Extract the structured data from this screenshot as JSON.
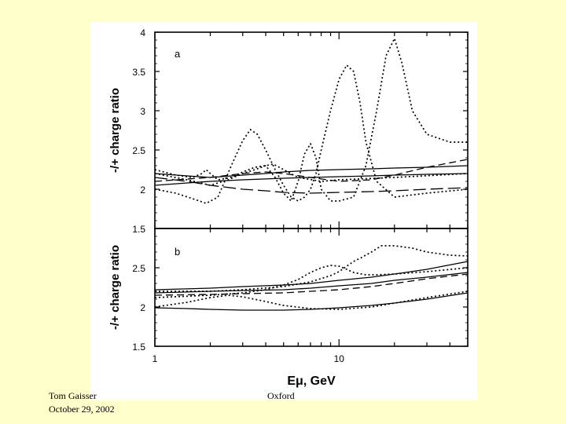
{
  "footer": {
    "author": "Tom Gaisser",
    "date": "October 29, 2002",
    "venue": "Oxford"
  },
  "chart_data": [
    {
      "type": "line",
      "panel_label": "a",
      "ylabel": "-/+ charge ratio",
      "xlabel": "",
      "xscale": "log",
      "xlim": [
        1,
        50
      ],
      "ylim": [
        1.5,
        4
      ],
      "yticks": [
        1.5,
        2,
        2.5,
        3,
        3.5,
        4
      ],
      "ytick_labels": [
        "1.5",
        "2",
        "2.5",
        "3",
        "3.5",
        "4"
      ],
      "series": [
        {
          "style": "dotted",
          "x": [
            1,
            1.3,
            1.6,
            1.9,
            2.2,
            2.6,
            3,
            3.3,
            3.6,
            4,
            4.5,
            5,
            5.5,
            6,
            6.5,
            7,
            7.5,
            8,
            9,
            10,
            11,
            12,
            13,
            14,
            16,
            20,
            30,
            50
          ],
          "y": [
            2.0,
            1.95,
            1.88,
            1.82,
            1.9,
            2.3,
            2.62,
            2.76,
            2.7,
            2.5,
            2.25,
            2.05,
            1.9,
            1.85,
            1.9,
            2.0,
            2.2,
            2.5,
            3.0,
            3.4,
            3.58,
            3.5,
            3.1,
            2.6,
            2.1,
            1.9,
            1.95,
            2.0
          ]
        },
        {
          "style": "dotted",
          "x": [
            1,
            1.5,
            2,
            2.5,
            3,
            3.5,
            4,
            4.5,
            5,
            5.5,
            6,
            6.5,
            7,
            7.5,
            8,
            9,
            10,
            12,
            14,
            16,
            18,
            20,
            22,
            25,
            30,
            40,
            50
          ],
          "y": [
            2.2,
            2.12,
            2.05,
            2.12,
            2.2,
            2.25,
            2.3,
            2.15,
            1.95,
            1.85,
            2.1,
            2.45,
            2.58,
            2.4,
            2.0,
            1.85,
            1.85,
            1.9,
            2.3,
            3.0,
            3.7,
            3.92,
            3.6,
            3.0,
            2.7,
            2.6,
            2.6
          ]
        },
        {
          "style": "dotted",
          "x": [
            1,
            1.3,
            1.6,
            1.8,
            1.9,
            2.0,
            2.2,
            2.6,
            3,
            3.5,
            4,
            4.4,
            5,
            6,
            8,
            10,
            20,
            50
          ],
          "y": [
            2.25,
            2.18,
            2.15,
            2.2,
            2.25,
            2.2,
            2.12,
            2.15,
            2.22,
            2.28,
            2.3,
            2.32,
            2.25,
            2.15,
            2.1,
            2.12,
            2.15,
            2.2
          ]
        },
        {
          "style": "long-dash",
          "x": [
            1,
            1.5,
            2,
            3,
            4,
            5,
            7,
            10,
            15,
            20,
            30,
            50
          ],
          "y": [
            2.15,
            2.1,
            2.05,
            2.0,
            1.98,
            1.96,
            1.95,
            1.96,
            1.97,
            1.98,
            2.0,
            2.02
          ]
        },
        {
          "style": "dash",
          "x": [
            1,
            1.5,
            2,
            3,
            4,
            5,
            7,
            10,
            15,
            20,
            30,
            50
          ],
          "y": [
            2.1,
            2.13,
            2.15,
            2.2,
            2.22,
            2.2,
            2.15,
            2.1,
            2.12,
            2.18,
            2.28,
            2.38
          ]
        },
        {
          "style": "solid",
          "x": [
            1,
            1.5,
            2,
            3,
            4,
            5,
            7,
            10,
            15,
            20,
            30,
            50
          ],
          "y": [
            2.2,
            2.17,
            2.15,
            2.18,
            2.2,
            2.22,
            2.24,
            2.25,
            2.26,
            2.27,
            2.28,
            2.3
          ]
        },
        {
          "style": "solid",
          "x": [
            1,
            1.5,
            2,
            3,
            5,
            7,
            10,
            15,
            20,
            30,
            50
          ],
          "y": [
            2.05,
            2.08,
            2.1,
            2.12,
            2.14,
            2.15,
            2.16,
            2.17,
            2.18,
            2.19,
            2.2
          ]
        }
      ]
    },
    {
      "type": "line",
      "panel_label": "b",
      "ylabel": "-/+ charge ratio",
      "xlabel": "Eμ, GeV",
      "xscale": "log",
      "xlim": [
        1,
        50
      ],
      "ylim": [
        1.5,
        3
      ],
      "xticks": [
        1,
        10
      ],
      "xtick_labels": [
        "1",
        "10"
      ],
      "yticks": [
        1.5,
        2,
        2.5
      ],
      "ytick_labels": [
        "1.5",
        "2",
        "2.5"
      ],
      "series": [
        {
          "style": "dotted",
          "x": [
            1,
            2,
            3,
            4,
            5,
            6,
            7,
            8,
            9,
            10,
            11,
            12,
            14,
            16,
            20,
            30,
            50
          ],
          "y": [
            2.12,
            2.15,
            2.18,
            2.22,
            2.28,
            2.35,
            2.44,
            2.5,
            2.53,
            2.52,
            2.48,
            2.44,
            2.41,
            2.41,
            2.42,
            2.45,
            2.5
          ]
        },
        {
          "style": "dotted",
          "x": [
            1,
            2,
            3,
            5,
            7,
            9,
            10,
            11,
            12,
            13,
            15,
            17,
            20,
            25,
            30,
            40,
            50
          ],
          "y": [
            2.2,
            2.2,
            2.22,
            2.26,
            2.32,
            2.4,
            2.45,
            2.52,
            2.58,
            2.62,
            2.7,
            2.78,
            2.78,
            2.75,
            2.7,
            2.66,
            2.65
          ]
        },
        {
          "style": "dotted",
          "x": [
            1,
            1.5,
            2,
            2.5,
            3,
            4,
            5,
            7,
            10,
            15,
            20,
            30,
            50
          ],
          "y": [
            2.0,
            2.06,
            2.12,
            2.15,
            2.13,
            2.07,
            2.02,
            1.98,
            1.97,
            2.0,
            2.05,
            2.12,
            2.2
          ]
        },
        {
          "style": "solid",
          "x": [
            1,
            2,
            3,
            5,
            7,
            10,
            15,
            20,
            30,
            50
          ],
          "y": [
            2.22,
            2.24,
            2.26,
            2.28,
            2.3,
            2.34,
            2.38,
            2.42,
            2.48,
            2.58
          ]
        },
        {
          "style": "solid",
          "x": [
            1,
            2,
            3,
            5,
            7,
            10,
            15,
            20,
            30,
            50
          ],
          "y": [
            2.18,
            2.2,
            2.21,
            2.22,
            2.24,
            2.27,
            2.3,
            2.34,
            2.38,
            2.44
          ]
        },
        {
          "style": "dash",
          "x": [
            1,
            2,
            3,
            5,
            7,
            10,
            15,
            20,
            30,
            50
          ],
          "y": [
            2.15,
            2.16,
            2.17,
            2.18,
            2.2,
            2.22,
            2.26,
            2.3,
            2.36,
            2.42
          ]
        },
        {
          "style": "solid",
          "x": [
            1,
            1.5,
            2,
            3,
            5,
            7,
            10,
            15,
            20,
            30,
            50
          ],
          "y": [
            1.99,
            1.98,
            1.97,
            1.96,
            1.96,
            1.97,
            1.99,
            2.02,
            2.05,
            2.1,
            2.18
          ]
        }
      ]
    }
  ]
}
